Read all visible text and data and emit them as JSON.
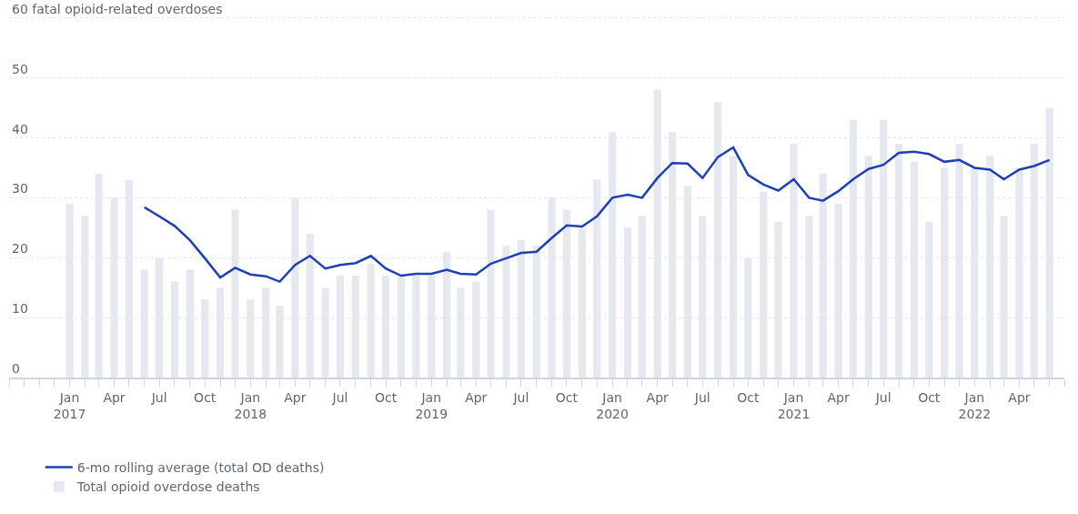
{
  "chart_data": {
    "type": "bar",
    "x": [
      "2017-01",
      "2017-02",
      "2017-03",
      "2017-04",
      "2017-05",
      "2017-06",
      "2017-07",
      "2017-08",
      "2017-09",
      "2017-10",
      "2017-11",
      "2017-12",
      "2018-01",
      "2018-02",
      "2018-03",
      "2018-04",
      "2018-05",
      "2018-06",
      "2018-07",
      "2018-08",
      "2018-09",
      "2018-10",
      "2018-11",
      "2018-12",
      "2019-01",
      "2019-02",
      "2019-03",
      "2019-04",
      "2019-05",
      "2019-06",
      "2019-07",
      "2019-08",
      "2019-09",
      "2019-10",
      "2019-11",
      "2019-12",
      "2020-01",
      "2020-02",
      "2020-03",
      "2020-04",
      "2020-05",
      "2020-06",
      "2020-07",
      "2020-08",
      "2020-09",
      "2020-10",
      "2020-11",
      "2020-12",
      "2021-01",
      "2021-02",
      "2021-03",
      "2021-04",
      "2021-05",
      "2021-06",
      "2021-07",
      "2021-08",
      "2021-09",
      "2021-10",
      "2021-11",
      "2021-12",
      "2022-01",
      "2022-02",
      "2022-03",
      "2022-04",
      "2022-05",
      "2022-06"
    ],
    "series": [
      {
        "name": "6-mo rolling average (total OD deaths)",
        "type": "line",
        "color": "#1f3fb8",
        "values": [
          null,
          null,
          null,
          null,
          null,
          28.4,
          26.9,
          25.3,
          22.9,
          19.9,
          16.7,
          18.3,
          17.2,
          16.9,
          16.0,
          18.8,
          20.3,
          18.2,
          18.8,
          19.1,
          20.3,
          18.2,
          17.0,
          17.3,
          17.3,
          18.0,
          17.3,
          17.2,
          19.0,
          19.9,
          20.8,
          21.0,
          23.3,
          25.4,
          25.2,
          26.9,
          30.0,
          30.5,
          30.0,
          33.3,
          35.8,
          35.7,
          33.3,
          36.8,
          38.4,
          33.8,
          32.2,
          31.2,
          33.1,
          30.0,
          29.5,
          31.1,
          33.1,
          34.8,
          35.5,
          37.5,
          37.7,
          37.3,
          36.0,
          36.3,
          35.0,
          34.7,
          33.1,
          34.7,
          35.3,
          36.3
        ]
      },
      {
        "name": "Total opioid overdose deaths",
        "color": "#e5e8ee",
        "values": [
          29,
          27,
          34,
          30,
          33,
          18,
          20,
          16,
          18,
          13,
          15,
          28,
          13,
          15,
          12,
          30,
          24,
          15,
          17,
          17,
          19,
          17,
          17,
          17,
          17,
          21,
          15,
          16,
          28,
          22,
          23,
          22,
          30,
          28,
          25,
          33,
          41,
          25,
          27,
          48,
          41,
          32,
          27,
          46,
          37,
          20,
          31,
          26,
          39,
          27,
          34,
          29,
          43,
          37,
          43,
          39,
          36,
          26,
          35,
          39,
          35,
          37,
          27,
          35,
          39,
          45
        ]
      }
    ],
    "xlim": [
      "2016-09-01",
      "2022-07-01"
    ],
    "xticks": [
      {
        "value": "2017-01",
        "label": "Jan\n2017"
      },
      {
        "value": "2017-04",
        "label": "Apr"
      },
      {
        "value": "2017-07",
        "label": "Jul"
      },
      {
        "value": "2017-10",
        "label": "Oct"
      },
      {
        "value": "2018-01",
        "label": "Jan\n2018"
      },
      {
        "value": "2018-04",
        "label": "Apr"
      },
      {
        "value": "2018-07",
        "label": "Jul"
      },
      {
        "value": "2018-10",
        "label": "Oct"
      },
      {
        "value": "2019-01",
        "label": "Jan\n2019"
      },
      {
        "value": "2019-04",
        "label": "Apr"
      },
      {
        "value": "2019-07",
        "label": "Jul"
      },
      {
        "value": "2019-10",
        "label": "Oct"
      },
      {
        "value": "2020-01",
        "label": "Jan\n2020"
      },
      {
        "value": "2020-04",
        "label": "Apr"
      },
      {
        "value": "2020-07",
        "label": "Jul"
      },
      {
        "value": "2020-10",
        "label": "Oct"
      },
      {
        "value": "2021-01",
        "label": "Jan\n2021"
      },
      {
        "value": "2021-04",
        "label": "Apr"
      },
      {
        "value": "2021-07",
        "label": "Jul"
      },
      {
        "value": "2021-10",
        "label": "Oct"
      },
      {
        "value": "2022-01",
        "label": "Jan\n2022"
      },
      {
        "value": "2022-04",
        "label": "Apr"
      }
    ],
    "ylim": [
      0,
      63
    ],
    "yticks": [
      0,
      10,
      20,
      30,
      40,
      50,
      {
        "value": 60,
        "label": "60 fatal opioid-related overdoses"
      }
    ],
    "grid": "y",
    "legend": "bottom left"
  }
}
